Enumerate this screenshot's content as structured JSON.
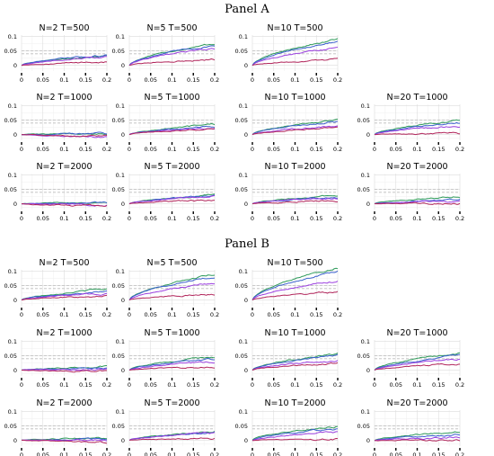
{
  "colors": {
    "green": "#2e9a5a",
    "blue": "#3a5fcd",
    "purple": "#9b3fe0",
    "red": "#b1245a",
    "reference_line": "#bdbdbd"
  },
  "chart_data": {
    "type": "line",
    "panel_titles": [
      "Panel A",
      "Panel B"
    ],
    "x_ticks": [
      0,
      0.05,
      0.1,
      0.15,
      0.2
    ],
    "x_tick_labels": [
      "0",
      "0.05",
      "0.1",
      "0.15",
      "0.2"
    ],
    "y_ticks": [
      0,
      0.05,
      0.1
    ],
    "y_tick_labels": [
      "0",
      "0.05",
      "0.1"
    ],
    "xlim": [
      0,
      0.2
    ],
    "ylim": [
      -0.02,
      0.105
    ],
    "reference_lines_y": [
      0.05,
      0.04
    ],
    "grid": true,
    "series_colors": [
      "green",
      "blue",
      "purple",
      "red"
    ],
    "subplots": [
      {
        "panel": 0,
        "row": 0,
        "col": 0,
        "title": "N=2   T=500",
        "ends": [
          0.033,
          0.035,
          0.028,
          0.012
        ]
      },
      {
        "panel": 0,
        "row": 0,
        "col": 1,
        "title": "N=5   T=500",
        "ends": [
          0.074,
          0.07,
          0.058,
          0.02
        ]
      },
      {
        "panel": 0,
        "row": 0,
        "col": 2,
        "title": "N=10   T=500",
        "ends": [
          0.09,
          0.082,
          0.06,
          0.02
        ]
      },
      {
        "panel": 0,
        "row": 1,
        "col": 0,
        "title": "N=2   T=1000",
        "ends": [
          0.004,
          0.003,
          -0.008,
          -0.005
        ]
      },
      {
        "panel": 0,
        "row": 1,
        "col": 1,
        "title": "N=5   T=1000",
        "ends": [
          0.033,
          0.028,
          0.022,
          0.018
        ]
      },
      {
        "panel": 0,
        "row": 1,
        "col": 2,
        "title": "N=10   T=1000",
        "ends": [
          0.05,
          0.044,
          0.03,
          0.025
        ]
      },
      {
        "panel": 0,
        "row": 1,
        "col": 3,
        "title": "N=20   T=1000",
        "ends": [
          0.05,
          0.04,
          0.03,
          0.004
        ]
      },
      {
        "panel": 0,
        "row": 2,
        "col": 0,
        "title": "N=2   T=2000",
        "ends": [
          0.006,
          0.004,
          -0.003,
          -0.007
        ]
      },
      {
        "panel": 0,
        "row": 2,
        "col": 1,
        "title": "N=5   T=2000",
        "ends": [
          0.03,
          0.028,
          0.026,
          0.012
        ]
      },
      {
        "panel": 0,
        "row": 2,
        "col": 2,
        "title": "N=10   T=2000",
        "ends": [
          0.03,
          0.022,
          0.02,
          0.012
        ]
      },
      {
        "panel": 0,
        "row": 2,
        "col": 3,
        "title": "N=20   T=2000",
        "ends": [
          0.025,
          0.014,
          0.01,
          0.002
        ]
      },
      {
        "panel": 1,
        "row": 0,
        "col": 0,
        "title": "N=2   T=500",
        "ends": [
          0.038,
          0.03,
          0.024,
          0.015
        ]
      },
      {
        "panel": 1,
        "row": 0,
        "col": 1,
        "title": "N=5   T=500",
        "ends": [
          0.09,
          0.082,
          0.06,
          0.02
        ]
      },
      {
        "panel": 1,
        "row": 0,
        "col": 2,
        "title": "N=10   T=500",
        "ends": [
          0.112,
          0.1,
          0.065,
          0.028
        ]
      },
      {
        "panel": 1,
        "row": 1,
        "col": 0,
        "title": "N=2   T=1000",
        "ends": [
          0.012,
          0.008,
          0.004,
          -0.003
        ]
      },
      {
        "panel": 1,
        "row": 1,
        "col": 1,
        "title": "N=5   T=1000",
        "ends": [
          0.045,
          0.04,
          0.03,
          0.012
        ]
      },
      {
        "panel": 1,
        "row": 1,
        "col": 2,
        "title": "N=10   T=1000",
        "ends": [
          0.058,
          0.052,
          0.035,
          0.025
        ]
      },
      {
        "panel": 1,
        "row": 1,
        "col": 3,
        "title": "N=20   T=1000",
        "ends": [
          0.06,
          0.05,
          0.04,
          0.022
        ]
      },
      {
        "panel": 1,
        "row": 2,
        "col": 0,
        "title": "N=2   T=2000",
        "ends": [
          0.01,
          0.005,
          0.0,
          -0.006
        ]
      },
      {
        "panel": 1,
        "row": 2,
        "col": 1,
        "title": "N=5   T=2000",
        "ends": [
          0.03,
          0.028,
          0.026,
          0.008
        ]
      },
      {
        "panel": 1,
        "row": 2,
        "col": 2,
        "title": "N=10   T=2000",
        "ends": [
          0.05,
          0.04,
          0.028,
          0.005
        ]
      },
      {
        "panel": 1,
        "row": 2,
        "col": 3,
        "title": "N=20   T=2000",
        "ends": [
          0.03,
          0.02,
          0.01,
          0.0
        ]
      }
    ]
  }
}
